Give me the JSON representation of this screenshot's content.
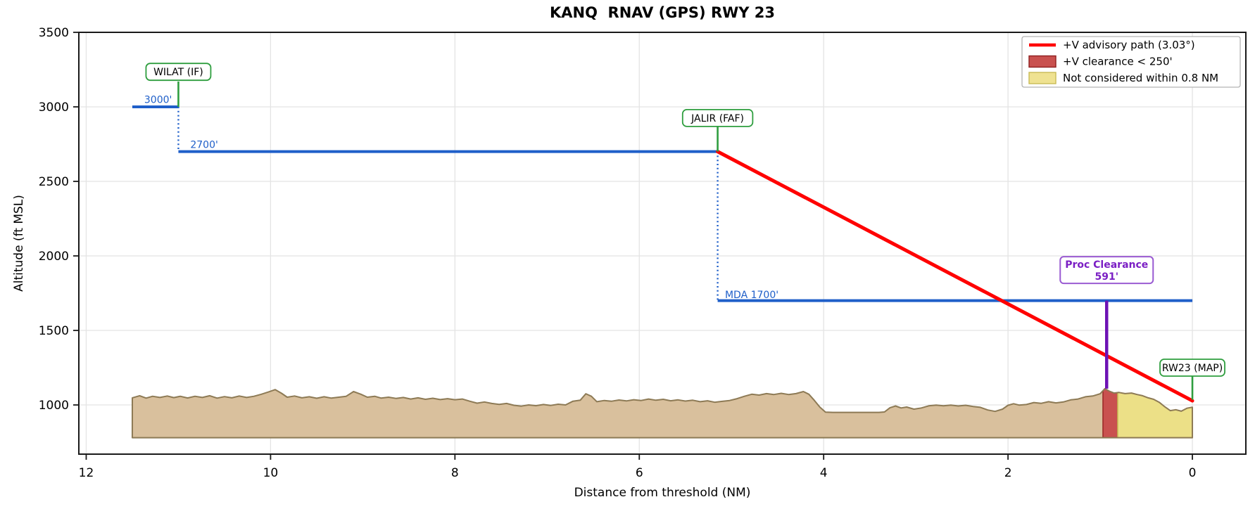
{
  "window": {
    "title": "KANQ  RNAV (GPS) RWY 23"
  },
  "chart_data": {
    "type": "line",
    "title": "KANQ  RNAV (GPS) RWY 23",
    "xlabel": "Distance from threshold (NM)",
    "ylabel": "Altitude (ft MSL)",
    "x_axis_reversed": true,
    "grid": true,
    "xlim": [
      12.08,
      -0.58
    ],
    "ylim": [
      670,
      3500
    ],
    "x_ticks": [
      12,
      10,
      8,
      6,
      4,
      2,
      0
    ],
    "y_ticks": [
      1000,
      1500,
      2000,
      2500,
      3000,
      3500
    ],
    "colors": {
      "track_blue": "#1f5fc9",
      "advisory_red": "#ff0000",
      "fix_green": "#2f9e3f",
      "clearance_purple": "#6d12b4",
      "clearance_box_purple": "#9a5bd2",
      "clearance_text_purple": "#7b1fc4",
      "terrain_fill": "#d9c09d",
      "terrain_edge": "#8d7a55",
      "band_red_fill": "#c9514f",
      "band_red_edge": "#9c2a28",
      "band_yellow_fill": "#ece087",
      "band_yellow_edge": "#c9bb55",
      "grid": "#e4e4e4",
      "spine": "#1a1a1a"
    },
    "legend": {
      "position": "upper right",
      "items": [
        {
          "label": "+V advisory path (3.03°)",
          "swatch": "line",
          "fill": "#ff0000",
          "edge": "#ff0000"
        },
        {
          "label": "+V clearance < 250'",
          "swatch": "patch",
          "fill": "#c9514f",
          "edge": "#8f1f1f"
        },
        {
          "label": "Not considered within 0.8 NM",
          "swatch": "patch",
          "fill": "#efe291",
          "edge": "#c9bb55"
        }
      ]
    },
    "procedure_track": {
      "segments": [
        [
          [
            11.5,
            3000
          ],
          [
            11.0,
            3000
          ]
        ],
        [
          [
            11.0,
            2700
          ],
          [
            5.15,
            2700
          ]
        ],
        [
          [
            5.15,
            1700
          ],
          [
            0.0,
            1700
          ]
        ]
      ],
      "descents": [
        {
          "x": 11.0,
          "from_alt": 3000,
          "to_alt": 2700
        },
        {
          "x": 5.15,
          "from_alt": 2700,
          "to_alt": 1700
        }
      ]
    },
    "advisory_path": {
      "label": "+V advisory path (3.03°)",
      "angle_deg": 3.03,
      "points": [
        [
          5.15,
          2700
        ],
        [
          0.0,
          1028
        ]
      ]
    },
    "bands": [
      {
        "name": "+V clearance < 250'",
        "x_range": [
          0.97,
          0.81
        ],
        "fill": "#c9514f",
        "edge": "#9c2a28"
      },
      {
        "name": "Not considered within 0.8 NM",
        "x_range": [
          0.81,
          0.0
        ],
        "fill": "#ece087",
        "edge": "#c9bb55"
      }
    ],
    "fixes": [
      {
        "label": "WILAT (IF)",
        "x": 11.0,
        "marker_from_alt": 3000,
        "marker_to_alt": 3170,
        "label_alt": 3235
      },
      {
        "label": "JALIR (FAF)",
        "x": 5.15,
        "marker_from_alt": 2700,
        "marker_to_alt": 2870,
        "label_alt": 2925
      },
      {
        "label": "RW23 (MAP)",
        "x": 0.0,
        "marker_from_alt": 1035,
        "marker_to_alt": 1195,
        "label_alt": 1250
      }
    ],
    "altitude_labels": [
      {
        "text": "3000'",
        "x": 11.22,
        "alt": 3025
      },
      {
        "text": "2700'",
        "x": 10.72,
        "alt": 2725
      },
      {
        "text": "MDA 1700'",
        "x": 4.78,
        "alt": 1718
      }
    ],
    "proc_clearance": {
      "x": 0.93,
      "from_alt": 1700,
      "to_alt": 1109,
      "value_ft": 591,
      "label_line1": "Proc Clearance",
      "label_line2": "591'",
      "label_alt": 1905
    },
    "terrain": {
      "base_alt": 780,
      "points": [
        [
          11.5,
          1048
        ],
        [
          11.42,
          1062
        ],
        [
          11.35,
          1046
        ],
        [
          11.28,
          1058
        ],
        [
          11.2,
          1050
        ],
        [
          11.12,
          1060
        ],
        [
          11.05,
          1049
        ],
        [
          10.98,
          1058
        ],
        [
          10.9,
          1047
        ],
        [
          10.82,
          1058
        ],
        [
          10.74,
          1050
        ],
        [
          10.66,
          1062
        ],
        [
          10.58,
          1046
        ],
        [
          10.5,
          1056
        ],
        [
          10.42,
          1048
        ],
        [
          10.34,
          1060
        ],
        [
          10.26,
          1050
        ],
        [
          10.18,
          1058
        ],
        [
          10.1,
          1072
        ],
        [
          10.02,
          1088
        ],
        [
          9.95,
          1103
        ],
        [
          9.88,
          1078
        ],
        [
          9.82,
          1052
        ],
        [
          9.74,
          1060
        ],
        [
          9.66,
          1048
        ],
        [
          9.58,
          1055
        ],
        [
          9.5,
          1045
        ],
        [
          9.42,
          1055
        ],
        [
          9.34,
          1046
        ],
        [
          9.26,
          1052
        ],
        [
          9.18,
          1058
        ],
        [
          9.1,
          1090
        ],
        [
          9.02,
          1072
        ],
        [
          8.95,
          1052
        ],
        [
          8.87,
          1058
        ],
        [
          8.8,
          1046
        ],
        [
          8.72,
          1052
        ],
        [
          8.64,
          1044
        ],
        [
          8.56,
          1050
        ],
        [
          8.48,
          1040
        ],
        [
          8.4,
          1048
        ],
        [
          8.32,
          1038
        ],
        [
          8.24,
          1045
        ],
        [
          8.16,
          1036
        ],
        [
          8.08,
          1042
        ],
        [
          8.0,
          1035
        ],
        [
          7.92,
          1040
        ],
        [
          7.84,
          1025
        ],
        [
          7.76,
          1012
        ],
        [
          7.68,
          1020
        ],
        [
          7.6,
          1010
        ],
        [
          7.52,
          1004
        ],
        [
          7.44,
          1010
        ],
        [
          7.36,
          998
        ],
        [
          7.28,
          992
        ],
        [
          7.2,
          1000
        ],
        [
          7.12,
          995
        ],
        [
          7.04,
          1003
        ],
        [
          6.96,
          997
        ],
        [
          6.88,
          1005
        ],
        [
          6.8,
          1000
        ],
        [
          6.72,
          1025
        ],
        [
          6.64,
          1032
        ],
        [
          6.58,
          1075
        ],
        [
          6.52,
          1058
        ],
        [
          6.46,
          1022
        ],
        [
          6.38,
          1030
        ],
        [
          6.3,
          1025
        ],
        [
          6.22,
          1033
        ],
        [
          6.14,
          1027
        ],
        [
          6.06,
          1035
        ],
        [
          5.98,
          1030
        ],
        [
          5.9,
          1040
        ],
        [
          5.82,
          1032
        ],
        [
          5.74,
          1038
        ],
        [
          5.66,
          1028
        ],
        [
          5.58,
          1034
        ],
        [
          5.5,
          1026
        ],
        [
          5.42,
          1032
        ],
        [
          5.34,
          1022
        ],
        [
          5.26,
          1028
        ],
        [
          5.18,
          1018
        ],
        [
          5.1,
          1024
        ],
        [
          5.02,
          1030
        ],
        [
          4.94,
          1042
        ],
        [
          4.86,
          1058
        ],
        [
          4.78,
          1072
        ],
        [
          4.7,
          1066
        ],
        [
          4.62,
          1076
        ],
        [
          4.54,
          1070
        ],
        [
          4.46,
          1078
        ],
        [
          4.38,
          1070
        ],
        [
          4.3,
          1076
        ],
        [
          4.22,
          1090
        ],
        [
          4.16,
          1072
        ],
        [
          4.1,
          1030
        ],
        [
          4.04,
          985
        ],
        [
          3.98,
          952
        ],
        [
          3.9,
          950
        ],
        [
          3.6,
          950
        ],
        [
          3.4,
          950
        ],
        [
          3.34,
          953
        ],
        [
          3.28,
          982
        ],
        [
          3.22,
          993
        ],
        [
          3.16,
          980
        ],
        [
          3.1,
          986
        ],
        [
          3.02,
          972
        ],
        [
          2.94,
          980
        ],
        [
          2.86,
          994
        ],
        [
          2.78,
          999
        ],
        [
          2.7,
          994
        ],
        [
          2.62,
          999
        ],
        [
          2.54,
          993
        ],
        [
          2.46,
          998
        ],
        [
          2.38,
          990
        ],
        [
          2.3,
          984
        ],
        [
          2.22,
          966
        ],
        [
          2.14,
          957
        ],
        [
          2.06,
          972
        ],
        [
          2.0,
          998
        ],
        [
          1.94,
          1008
        ],
        [
          1.88,
          999
        ],
        [
          1.8,
          1003
        ],
        [
          1.72,
          1016
        ],
        [
          1.64,
          1011
        ],
        [
          1.56,
          1022
        ],
        [
          1.48,
          1014
        ],
        [
          1.4,
          1020
        ],
        [
          1.32,
          1034
        ],
        [
          1.24,
          1040
        ],
        [
          1.16,
          1055
        ],
        [
          1.08,
          1060
        ],
        [
          1.0,
          1075
        ],
        [
          0.95,
          1109
        ],
        [
          0.9,
          1092
        ],
        [
          0.85,
          1080
        ],
        [
          0.8,
          1084
        ],
        [
          0.73,
          1076
        ],
        [
          0.66,
          1080
        ],
        [
          0.6,
          1070
        ],
        [
          0.54,
          1062
        ],
        [
          0.48,
          1048
        ],
        [
          0.42,
          1038
        ],
        [
          0.36,
          1018
        ],
        [
          0.3,
          988
        ],
        [
          0.24,
          962
        ],
        [
          0.18,
          968
        ],
        [
          0.12,
          958
        ],
        [
          0.06,
          978
        ],
        [
          0.0,
          985
        ]
      ]
    }
  }
}
